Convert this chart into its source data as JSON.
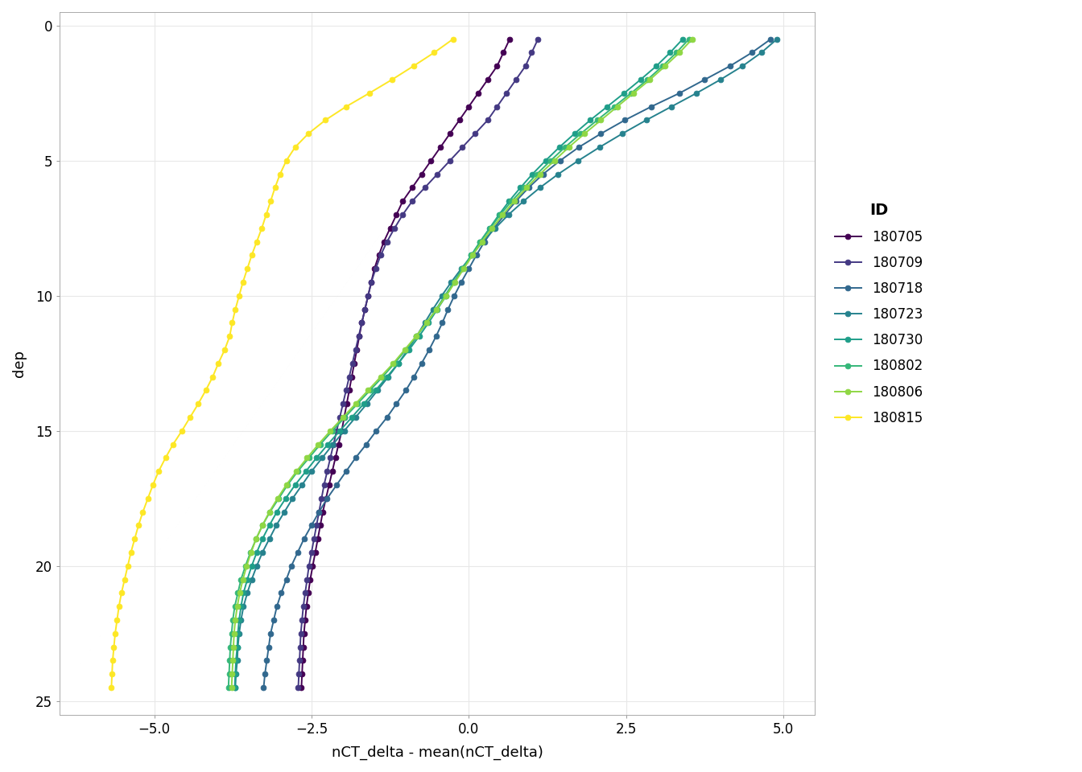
{
  "series": [
    {
      "id": "180705",
      "color": "#440154",
      "depths": [
        0.5,
        1.0,
        1.5,
        2.0,
        2.5,
        3.0,
        3.5,
        4.0,
        4.5,
        5.0,
        5.5,
        6.0,
        6.5,
        7.0,
        7.5,
        8.0,
        8.5,
        9.0,
        9.5,
        10.0,
        10.5,
        11.0,
        11.5,
        12.0,
        12.5,
        13.0,
        13.5,
        14.0,
        14.5,
        15.0,
        15.5,
        16.0,
        16.5,
        17.0,
        17.5,
        18.0,
        18.5,
        19.0,
        19.5,
        20.0,
        20.5,
        21.0,
        21.5,
        22.0,
        22.5,
        23.0,
        23.5,
        24.0,
        24.5
      ],
      "values": [
        0.65,
        0.55,
        0.45,
        0.3,
        0.15,
        0.0,
        -0.15,
        -0.3,
        -0.45,
        -0.6,
        -0.75,
        -0.9,
        -1.05,
        -1.15,
        -1.25,
        -1.35,
        -1.43,
        -1.5,
        -1.55,
        -1.6,
        -1.65,
        -1.7,
        -1.74,
        -1.78,
        -1.82,
        -1.86,
        -1.9,
        -1.94,
        -1.98,
        -2.02,
        -2.07,
        -2.12,
        -2.17,
        -2.22,
        -2.27,
        -2.32,
        -2.36,
        -2.4,
        -2.44,
        -2.48,
        -2.52,
        -2.55,
        -2.58,
        -2.6,
        -2.62,
        -2.63,
        -2.64,
        -2.65,
        -2.66
      ]
    },
    {
      "id": "180709",
      "color": "#443983",
      "depths": [
        0.5,
        1.0,
        1.5,
        2.0,
        2.5,
        3.0,
        3.5,
        4.0,
        4.5,
        5.0,
        5.5,
        6.0,
        6.5,
        7.0,
        7.5,
        8.0,
        8.5,
        9.0,
        9.5,
        10.0,
        10.5,
        11.0,
        11.5,
        12.0,
        12.5,
        13.0,
        13.5,
        14.0,
        14.5,
        15.0,
        15.5,
        16.0,
        16.5,
        17.0,
        17.5,
        18.0,
        18.5,
        19.0,
        19.5,
        20.0,
        20.5,
        21.0,
        21.5,
        22.0,
        22.5,
        23.0,
        23.5,
        24.0,
        24.5
      ],
      "values": [
        1.1,
        1.0,
        0.9,
        0.75,
        0.6,
        0.45,
        0.3,
        0.1,
        -0.1,
        -0.3,
        -0.5,
        -0.7,
        -0.9,
        -1.05,
        -1.18,
        -1.3,
        -1.4,
        -1.48,
        -1.55,
        -1.6,
        -1.65,
        -1.7,
        -1.75,
        -1.8,
        -1.85,
        -1.9,
        -1.95,
        -2.0,
        -2.05,
        -2.1,
        -2.15,
        -2.2,
        -2.25,
        -2.3,
        -2.34,
        -2.38,
        -2.42,
        -2.46,
        -2.5,
        -2.54,
        -2.57,
        -2.6,
        -2.63,
        -2.65,
        -2.67,
        -2.68,
        -2.69,
        -2.7,
        -2.71
      ]
    },
    {
      "id": "180718",
      "color": "#31688e",
      "depths": [
        0.5,
        1.0,
        1.5,
        2.0,
        2.5,
        3.0,
        3.5,
        4.0,
        4.5,
        5.0,
        5.5,
        6.0,
        6.5,
        7.0,
        7.5,
        8.0,
        8.5,
        9.0,
        9.5,
        10.0,
        10.5,
        11.0,
        11.5,
        12.0,
        12.5,
        13.0,
        13.5,
        14.0,
        14.5,
        15.0,
        15.5,
        16.0,
        16.5,
        17.0,
        17.5,
        18.0,
        18.5,
        19.0,
        19.5,
        20.0,
        20.5,
        21.0,
        21.5,
        22.0,
        22.5,
        23.0,
        23.5,
        24.0,
        24.5
      ],
      "values": [
        4.8,
        4.5,
        4.15,
        3.75,
        3.35,
        2.9,
        2.48,
        2.1,
        1.75,
        1.45,
        1.18,
        0.95,
        0.75,
        0.57,
        0.4,
        0.25,
        0.12,
        0.0,
        -0.12,
        -0.23,
        -0.33,
        -0.42,
        -0.52,
        -0.63,
        -0.75,
        -0.87,
        -1.0,
        -1.15,
        -1.3,
        -1.47,
        -1.63,
        -1.8,
        -1.95,
        -2.1,
        -2.25,
        -2.38,
        -2.5,
        -2.62,
        -2.72,
        -2.82,
        -2.9,
        -2.98,
        -3.05,
        -3.1,
        -3.15,
        -3.18,
        -3.21,
        -3.24,
        -3.26
      ]
    },
    {
      "id": "180723",
      "color": "#26828e",
      "depths": [
        0.5,
        1.0,
        1.5,
        2.0,
        2.5,
        3.0,
        3.5,
        4.0,
        4.5,
        5.0,
        5.5,
        6.0,
        6.5,
        7.0,
        7.5,
        8.0,
        8.5,
        9.0,
        9.5,
        10.0,
        10.5,
        11.0,
        11.5,
        12.0,
        12.5,
        13.0,
        13.5,
        14.0,
        14.5,
        15.0,
        15.5,
        16.0,
        16.5,
        17.0,
        17.5,
        18.0,
        18.5,
        19.0,
        19.5,
        20.0,
        20.5,
        21.0,
        21.5,
        22.0,
        22.5,
        23.0,
        23.5,
        24.0,
        24.5
      ],
      "values": [
        4.9,
        4.65,
        4.35,
        4.0,
        3.62,
        3.22,
        2.82,
        2.44,
        2.08,
        1.74,
        1.42,
        1.13,
        0.87,
        0.63,
        0.42,
        0.22,
        0.05,
        -0.12,
        -0.28,
        -0.43,
        -0.57,
        -0.7,
        -0.83,
        -0.97,
        -1.12,
        -1.28,
        -1.45,
        -1.62,
        -1.8,
        -1.98,
        -2.16,
        -2.33,
        -2.5,
        -2.65,
        -2.8,
        -2.93,
        -3.06,
        -3.17,
        -3.28,
        -3.37,
        -3.45,
        -3.52,
        -3.58,
        -3.62,
        -3.65,
        -3.67,
        -3.68,
        -3.7,
        -3.71
      ]
    },
    {
      "id": "180730",
      "color": "#1f9e89",
      "depths": [
        0.5,
        1.0,
        1.5,
        2.0,
        2.5,
        3.0,
        3.5,
        4.0,
        4.5,
        5.0,
        5.5,
        6.0,
        6.5,
        7.0,
        7.5,
        8.0,
        8.5,
        9.0,
        9.5,
        10.0,
        10.5,
        11.0,
        11.5,
        12.0,
        12.5,
        13.0,
        13.5,
        14.0,
        14.5,
        15.0,
        15.5,
        16.0,
        16.5,
        17.0,
        17.5,
        18.0,
        18.5,
        19.0,
        19.5,
        20.0,
        20.5,
        21.0,
        21.5,
        22.0,
        22.5,
        23.0,
        23.5,
        24.0,
        24.5
      ],
      "values": [
        3.4,
        3.2,
        2.98,
        2.73,
        2.47,
        2.2,
        1.93,
        1.68,
        1.44,
        1.22,
        1.01,
        0.82,
        0.64,
        0.48,
        0.33,
        0.18,
        0.04,
        -0.1,
        -0.23,
        -0.36,
        -0.5,
        -0.64,
        -0.79,
        -0.95,
        -1.12,
        -1.3,
        -1.48,
        -1.67,
        -1.86,
        -2.05,
        -2.24,
        -2.42,
        -2.59,
        -2.76,
        -2.91,
        -3.05,
        -3.17,
        -3.28,
        -3.37,
        -3.45,
        -3.52,
        -3.58,
        -3.62,
        -3.65,
        -3.67,
        -3.68,
        -3.7,
        -3.71,
        -3.72
      ]
    },
    {
      "id": "180802",
      "color": "#35b779",
      "depths": [
        0.5,
        1.0,
        1.5,
        2.0,
        2.5,
        3.0,
        3.5,
        4.0,
        4.5,
        5.0,
        5.5,
        6.0,
        6.5,
        7.0,
        7.5,
        8.0,
        8.5,
        9.0,
        9.5,
        10.0,
        10.5,
        11.0,
        11.5,
        12.0,
        12.5,
        13.0,
        13.5,
        14.0,
        14.5,
        15.0,
        15.5,
        16.0,
        16.5,
        17.0,
        17.5,
        18.0,
        18.5,
        19.0,
        19.5,
        20.0,
        20.5,
        21.0,
        21.5,
        22.0,
        22.5,
        23.0,
        23.5,
        24.0,
        24.5
      ],
      "values": [
        3.5,
        3.3,
        3.08,
        2.84,
        2.58,
        2.31,
        2.04,
        1.78,
        1.53,
        1.3,
        1.08,
        0.88,
        0.68,
        0.5,
        0.34,
        0.18,
        0.04,
        -0.1,
        -0.24,
        -0.38,
        -0.52,
        -0.67,
        -0.83,
        -1.0,
        -1.18,
        -1.37,
        -1.57,
        -1.77,
        -1.97,
        -2.17,
        -2.36,
        -2.54,
        -2.72,
        -2.88,
        -3.02,
        -3.16,
        -3.28,
        -3.38,
        -3.47,
        -3.55,
        -3.62,
        -3.67,
        -3.72,
        -3.75,
        -3.77,
        -3.79,
        -3.8,
        -3.81,
        -3.82
      ]
    },
    {
      "id": "180806",
      "color": "#8fd744",
      "depths": [
        0.5,
        1.0,
        1.5,
        2.0,
        2.5,
        3.0,
        3.5,
        4.0,
        4.5,
        5.0,
        5.5,
        6.0,
        6.5,
        7.0,
        7.5,
        8.0,
        8.5,
        9.0,
        9.5,
        10.0,
        10.5,
        11.0,
        11.5,
        12.0,
        12.5,
        13.0,
        13.5,
        14.0,
        14.5,
        15.0,
        15.5,
        16.0,
        16.5,
        17.0,
        17.5,
        18.0,
        18.5,
        19.0,
        19.5,
        20.0,
        20.5,
        21.0,
        21.5,
        22.0,
        22.5,
        23.0,
        23.5,
        24.0,
        24.5
      ],
      "values": [
        3.55,
        3.35,
        3.12,
        2.88,
        2.62,
        2.36,
        2.1,
        1.84,
        1.59,
        1.36,
        1.13,
        0.92,
        0.72,
        0.54,
        0.37,
        0.21,
        0.06,
        -0.08,
        -0.22,
        -0.36,
        -0.51,
        -0.67,
        -0.84,
        -1.02,
        -1.2,
        -1.4,
        -1.6,
        -1.8,
        -2.0,
        -2.2,
        -2.39,
        -2.57,
        -2.74,
        -2.9,
        -3.04,
        -3.17,
        -3.28,
        -3.38,
        -3.46,
        -3.53,
        -3.59,
        -3.64,
        -3.68,
        -3.71,
        -3.73,
        -3.74,
        -3.75,
        -3.76,
        -3.77
      ]
    },
    {
      "id": "180815",
      "color": "#fde725",
      "depths": [
        0.5,
        1.0,
        1.5,
        2.0,
        2.5,
        3.0,
        3.5,
        4.0,
        4.5,
        5.0,
        5.5,
        6.0,
        6.5,
        7.0,
        7.5,
        8.0,
        8.5,
        9.0,
        9.5,
        10.0,
        10.5,
        11.0,
        11.5,
        12.0,
        12.5,
        13.0,
        13.5,
        14.0,
        14.5,
        15.0,
        15.5,
        16.0,
        16.5,
        17.0,
        17.5,
        18.0,
        18.5,
        19.0,
        19.5,
        20.0,
        20.5,
        21.0,
        21.5,
        22.0,
        22.5,
        23.0,
        23.5,
        24.0,
        24.5
      ],
      "values": [
        -0.25,
        -0.55,
        -0.88,
        -1.22,
        -1.58,
        -1.95,
        -2.28,
        -2.55,
        -2.76,
        -2.9,
        -3.0,
        -3.08,
        -3.15,
        -3.22,
        -3.29,
        -3.37,
        -3.45,
        -3.52,
        -3.59,
        -3.65,
        -3.71,
        -3.76,
        -3.8,
        -3.88,
        -3.98,
        -4.07,
        -4.18,
        -4.3,
        -4.43,
        -4.56,
        -4.7,
        -4.82,
        -4.93,
        -5.02,
        -5.1,
        -5.18,
        -5.25,
        -5.31,
        -5.37,
        -5.42,
        -5.47,
        -5.52,
        -5.56,
        -5.59,
        -5.62,
        -5.64,
        -5.66,
        -5.67,
        -5.68
      ]
    }
  ],
  "xlim": [
    -6.5,
    5.5
  ],
  "ylim": [
    25.5,
    -0.5
  ],
  "xlabel": "nCT_delta - mean(nCT_delta)",
  "ylabel": "dep",
  "xticks": [
    -5.0,
    -2.5,
    0.0,
    2.5,
    5.0
  ],
  "yticks": [
    0,
    5,
    10,
    15,
    20,
    25
  ],
  "background_color": "#ffffff",
  "grid_color": "#e8e8e8",
  "legend_title": "ID",
  "markersize": 5.0,
  "linewidth": 1.4
}
